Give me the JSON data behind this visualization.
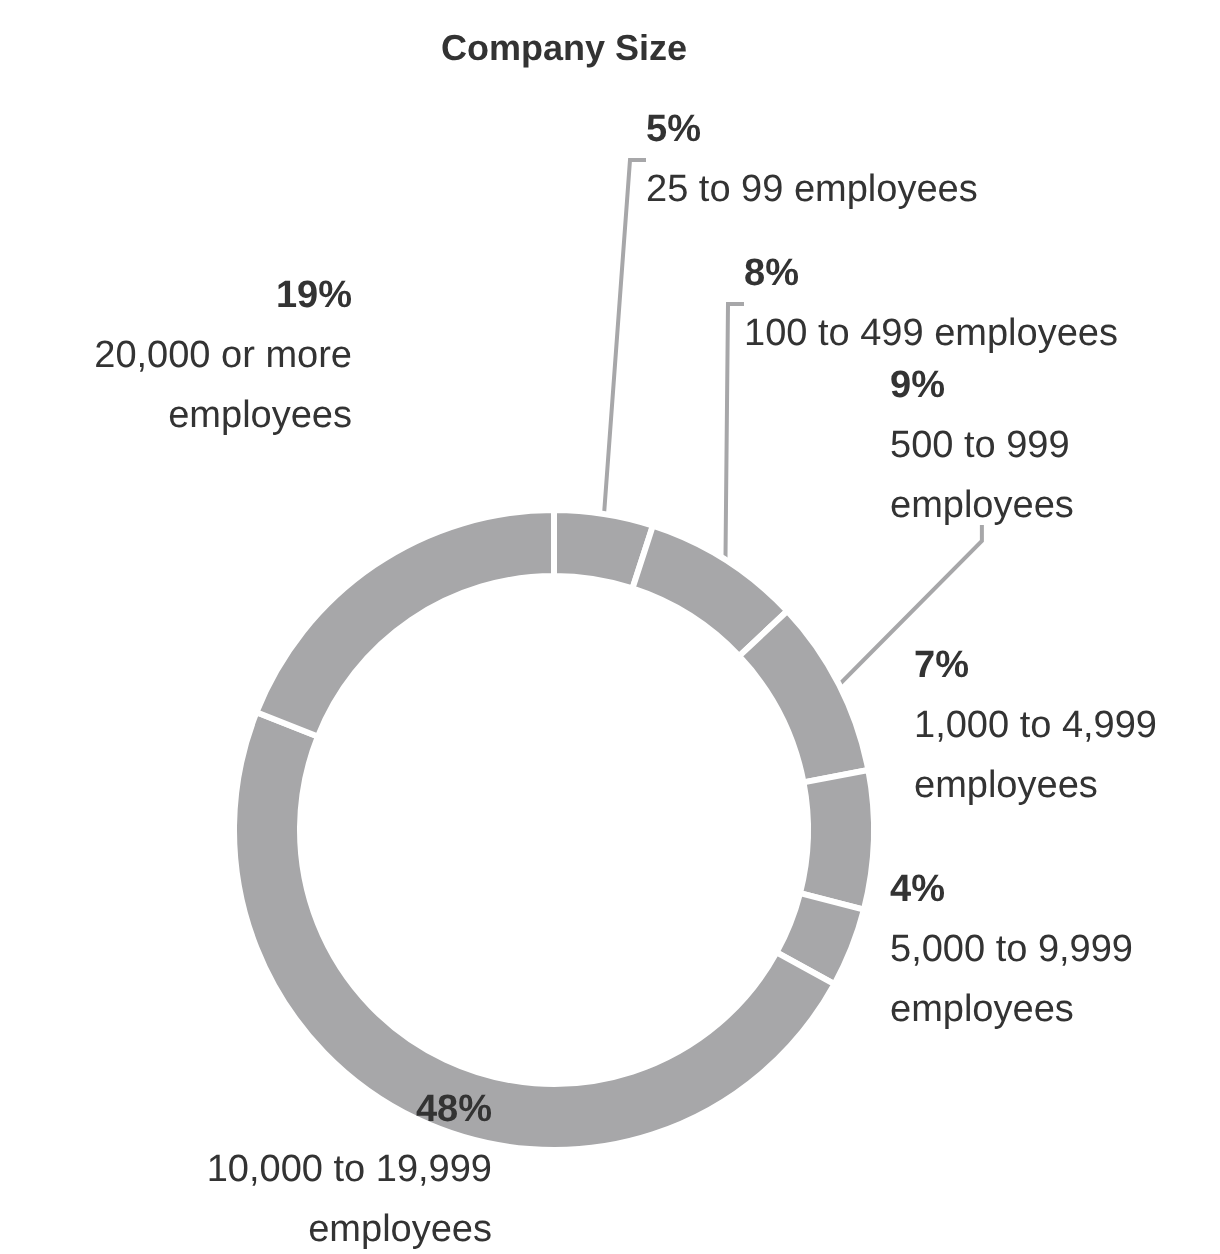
{
  "chart_data": {
    "type": "donut",
    "title": "Company Size",
    "categories": [
      "25 to 99 employees",
      "100 to 499 employees",
      "500 to 999 employees",
      "1,000 to 4,999 employees",
      "5,000 to 9,999 employees",
      "10,000 to 19,999 employees",
      "20,000 or more employees"
    ],
    "values": [
      5,
      8,
      9,
      7,
      4,
      48,
      19
    ],
    "value_labels": [
      "5%",
      "8%",
      "9%",
      "7%",
      "4%",
      "48%",
      "19%"
    ],
    "colors": [
      "#a7a7a9",
      "#a7a7a9",
      "#a7a7a9",
      "#a7a7a9",
      "#a7a7a9",
      "#a7a7a9",
      "#a7a7a9"
    ]
  }
}
